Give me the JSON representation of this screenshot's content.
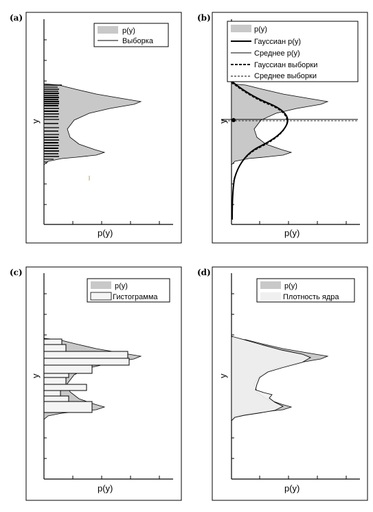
{
  "panels": [
    {
      "label": "(a)",
      "xlabel": "p(y)",
      "ylabel": "y",
      "legend": [
        "p(y)",
        "Выборка"
      ]
    },
    {
      "label": "(b)",
      "xlabel": "p(y)",
      "ylabel": "y",
      "legend": [
        "p(y)",
        "Гауссиан p(y)",
        "Среднее p(y)",
        "Гауссиан выборки",
        "Среднее выборки"
      ]
    },
    {
      "label": "(c)",
      "xlabel": "p(y)",
      "ylabel": "y",
      "legend": [
        "p(y)",
        "Гистограмма"
      ]
    },
    {
      "label": "(d)",
      "xlabel": "p(y)",
      "ylabel": "y",
      "legend": [
        "p(y)",
        "Плотность ядра"
      ]
    }
  ],
  "colors": {
    "density_fill": "#c8c8c8",
    "kernel_fill": "#f0f0f0",
    "line": "#000000"
  }
}
